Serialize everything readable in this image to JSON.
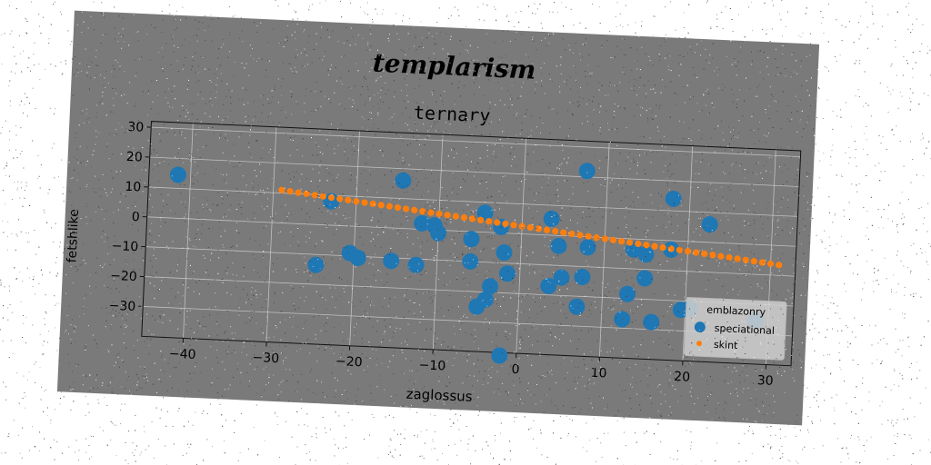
{
  "chart_data": {
    "type": "scatter",
    "suptitle": "templarism",
    "title": "ternary",
    "xlabel": "zaglossus",
    "ylabel": "fetshlike",
    "xlim": [
      -45,
      33
    ],
    "ylim": [
      -40,
      32
    ],
    "xticks": [
      -40,
      -30,
      -20,
      -10,
      0,
      10,
      20,
      30
    ],
    "yticks": [
      -30,
      -20,
      -10,
      0,
      10,
      20,
      30
    ],
    "grid": true,
    "legend": {
      "title": "emblazonry",
      "placement": "bottom-right"
    },
    "series": [
      {
        "name": "speciational",
        "color": "#1f77b4",
        "marker": "circle",
        "points": [
          [
            -41.5,
            14.5
          ],
          [
            -24.5,
            -13.5
          ],
          [
            -23,
            8
          ],
          [
            -20.5,
            -9
          ],
          [
            -19.5,
            -10.5
          ],
          [
            -15.5,
            -11
          ],
          [
            -14.5,
            16
          ],
          [
            -12.5,
            -12
          ],
          [
            -12,
            2
          ],
          [
            -10.5,
            1.5
          ],
          [
            -10,
            -1
          ],
          [
            -6,
            -2.5
          ],
          [
            -6,
            -10
          ],
          [
            -5,
            -25
          ],
          [
            -4.5,
            6.5
          ],
          [
            -4,
            -22.5
          ],
          [
            -3.5,
            -18
          ],
          [
            -2.5,
            2
          ],
          [
            -2,
            -6.5
          ],
          [
            -2,
            -41
          ],
          [
            -1.5,
            -13.5
          ],
          [
            3.5,
            -17
          ],
          [
            3.5,
            5.5
          ],
          [
            4.5,
            -3.5
          ],
          [
            5,
            -14
          ],
          [
            7,
            -23.5
          ],
          [
            7.5,
            22
          ],
          [
            7.5,
            -13.5
          ],
          [
            8,
            -3.5
          ],
          [
            12.5,
            -27
          ],
          [
            13,
            -18.5
          ],
          [
            13.5,
            -3.5
          ],
          [
            15,
            -13
          ],
          [
            15,
            -5
          ],
          [
            16,
            -27.5
          ],
          [
            18,
            14
          ],
          [
            18,
            -3
          ],
          [
            19.5,
            -23
          ],
          [
            20.5,
            -22.5
          ],
          [
            22.5,
            6
          ],
          [
            28.5,
            -25.5
          ]
        ]
      },
      {
        "name": "skint",
        "color": "#ff7f0e",
        "marker": "circle-small",
        "line": {
          "x_start": -29,
          "x_end": 31,
          "y_start": 11,
          "y_end": -6.5,
          "count": 61
        }
      }
    ]
  },
  "colors": {
    "plot_background": "#7a7a7a",
    "grid": "#d8d8d8",
    "text": "#000000",
    "legend_background": "#cfcfcf"
  }
}
